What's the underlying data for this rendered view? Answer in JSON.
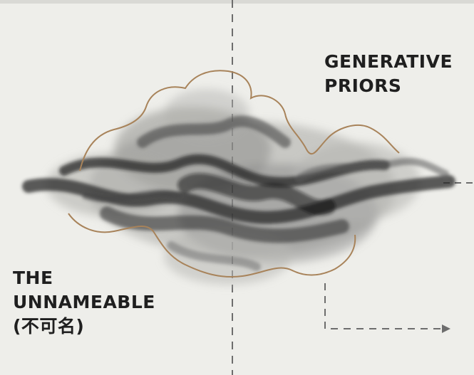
{
  "labels": {
    "top": [
      "GENERATIVE",
      "PRIORS"
    ],
    "bottom": [
      "THE",
      "UNNAMEABLE",
      "(不可名)"
    ]
  },
  "colors": {
    "background": "#eeeeea",
    "ink": "#1f1f1f",
    "dashed_line": "#6d6d6d",
    "outline": "#a8835a"
  }
}
